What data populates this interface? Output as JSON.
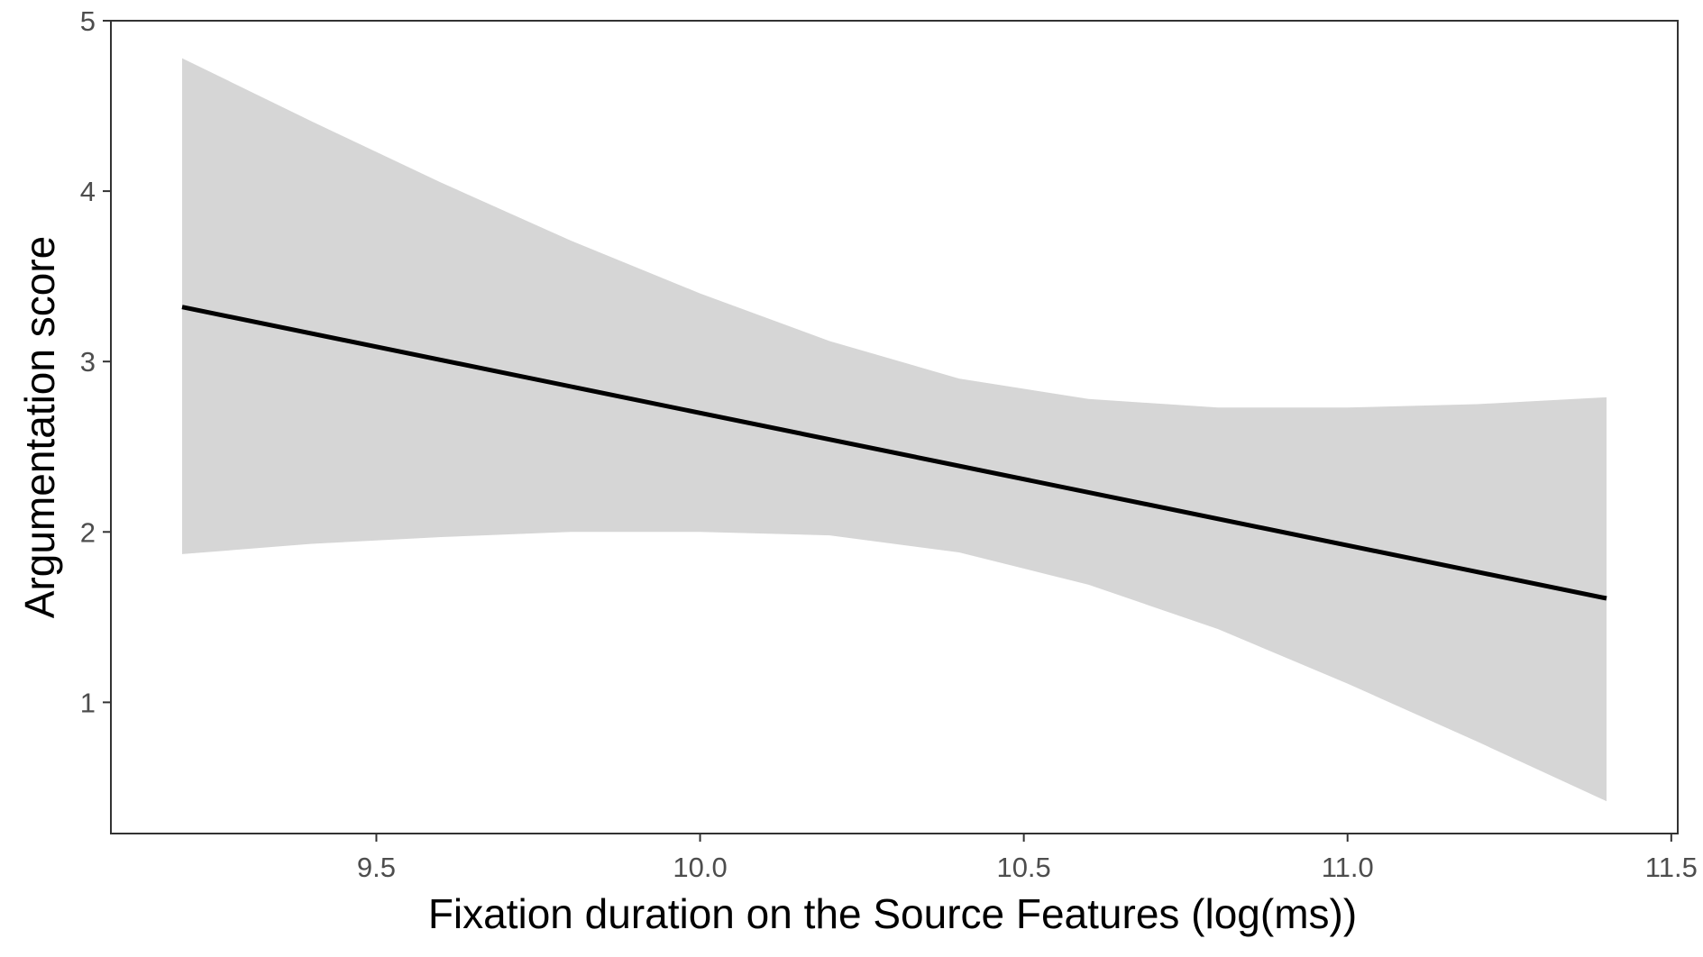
{
  "chart_data": {
    "type": "line",
    "title": "",
    "xlabel": "Fixation duration on the Source Features (log(ms))",
    "ylabel": "Argumentation score",
    "xlim": [
      9.09,
      11.51
    ],
    "ylim": [
      0.23,
      5.0
    ],
    "x_ticks": [
      9.5,
      10.0,
      10.5,
      11.0,
      11.5
    ],
    "x_tick_labels": [
      "9.5",
      "10.0",
      "10.5",
      "11.0",
      "11.5"
    ],
    "y_ticks": [
      1,
      2,
      3,
      4,
      5
    ],
    "y_tick_labels": [
      "1",
      "2",
      "3",
      "4",
      "5"
    ],
    "grid": false,
    "series": [
      {
        "x": [
          9.2,
          11.4
        ],
        "y": [
          3.32,
          1.61
        ],
        "color": "#000000"
      }
    ],
    "confidence_band": {
      "color": "#d6d6d6",
      "x": [
        9.2,
        9.4,
        9.6,
        9.8,
        10.0,
        10.2,
        10.4,
        10.6,
        10.8,
        11.0,
        11.2,
        11.4
      ],
      "upper": [
        4.78,
        4.41,
        4.05,
        3.71,
        3.4,
        3.12,
        2.9,
        2.78,
        2.73,
        2.73,
        2.75,
        2.79
      ],
      "lower": [
        1.87,
        1.93,
        1.97,
        2.0,
        2.0,
        1.98,
        1.88,
        1.69,
        1.43,
        1.11,
        0.77,
        0.42
      ]
    }
  }
}
